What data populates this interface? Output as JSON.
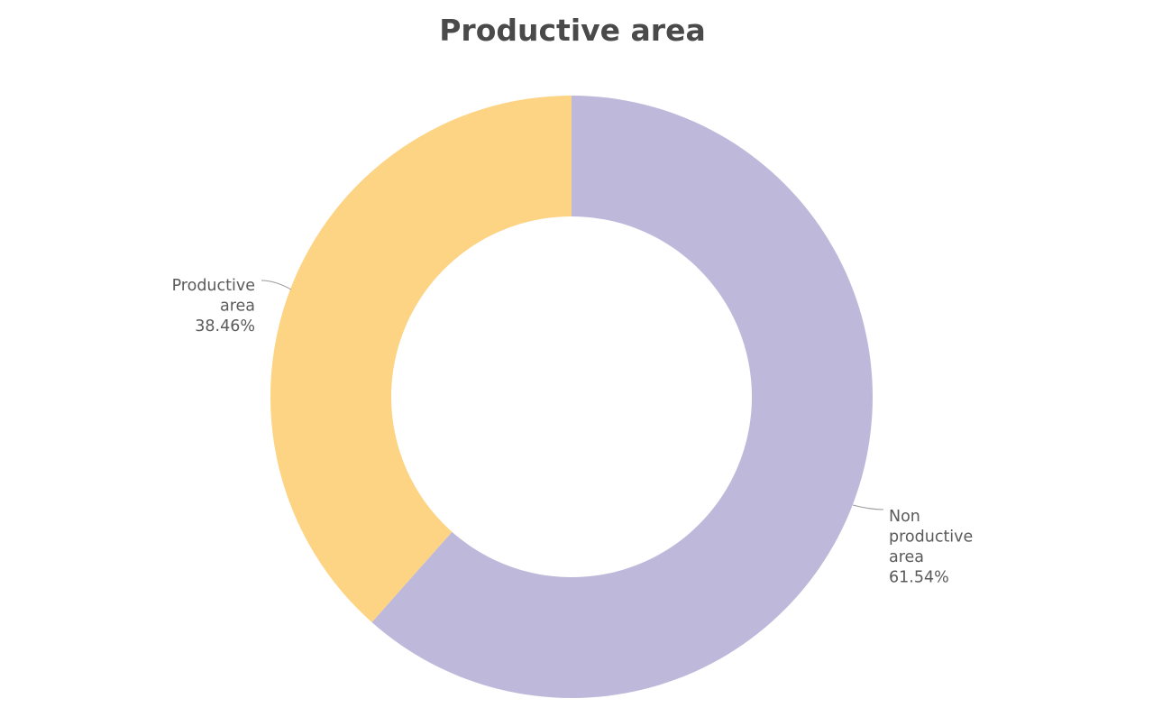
{
  "chart_data": {
    "type": "pie",
    "variant": "donut",
    "title": "Productive area",
    "slices": [
      {
        "label": "Non productive area",
        "label_lines": [
          "Non",
          "productive",
          "area"
        ],
        "percent_text": "61.54%",
        "value": 61.54,
        "color": "#BEB8DA"
      },
      {
        "label": "Productive area",
        "label_lines": [
          "Productive",
          "area"
        ],
        "percent_text": "38.46%",
        "value": 38.46,
        "color": "#FDD384"
      }
    ],
    "legend": "none",
    "label_placement": "outside"
  }
}
